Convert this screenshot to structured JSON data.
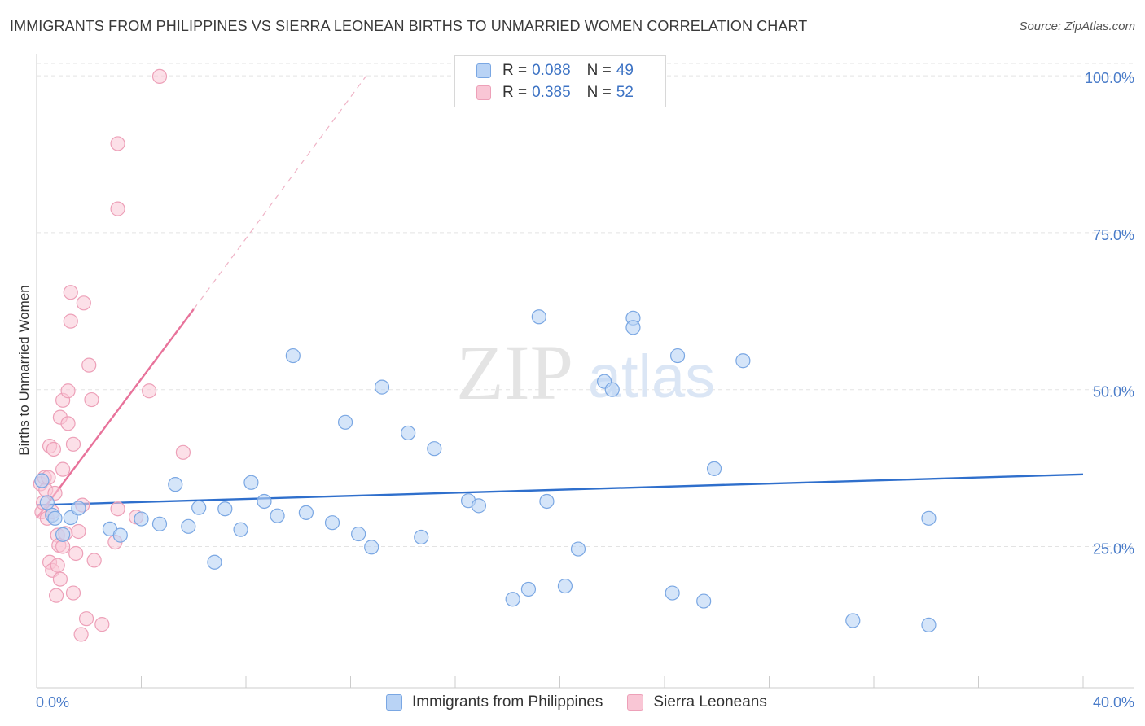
{
  "title": "IMMIGRANTS FROM PHILIPPINES VS SIERRA LEONEAN BIRTHS TO UNMARRIED WOMEN CORRELATION CHART",
  "source": "Source: ZipAtlas.com",
  "watermark": {
    "zip": "ZIP",
    "atlas": "atlas"
  },
  "legend": {
    "rows": [
      {
        "r_label": "R =",
        "r_value": "0.088",
        "n_label": "N =",
        "n_value": "49"
      },
      {
        "r_label": "R =",
        "r_value": "0.385",
        "n_label": "N =",
        "n_value": "52"
      }
    ]
  },
  "colors": {
    "philippines_fill": "#b9d3f5",
    "philippines_stroke": "#7aa7e3",
    "philippines_line": "#2f6fcc",
    "sierra_fill": "#f9c6d5",
    "sierra_stroke": "#eda0b8",
    "sierra_line": "#e8739b",
    "tick_text": "#4a7cc9",
    "grid": "#e3e3e3"
  },
  "chart_data": {
    "type": "scatter",
    "title": "IMMIGRANTS FROM PHILIPPINES VS SIERRA LEONEAN BIRTHS TO UNMARRIED WOMEN CORRELATION CHART",
    "xlabel": "",
    "ylabel": "Births to Unmarried Women",
    "xlim": [
      0,
      40
    ],
    "ylim": [
      2.5,
      103
    ],
    "x_tick_labels": [
      "0.0%",
      "40.0%"
    ],
    "y_ticks": [
      25,
      50,
      75,
      100
    ],
    "y_tick_labels": [
      "25.0%",
      "50.0%",
      "75.0%",
      "100.0%"
    ],
    "legend": [
      "Immigrants from Philippines",
      "Sierra Leoneans"
    ],
    "series": [
      {
        "name": "Immigrants from Philippines",
        "R": 0.088,
        "N": 49,
        "trend": {
          "x": [
            0,
            40
          ],
          "y": [
            31.6,
            36.5
          ]
        },
        "points": [
          [
            0.2,
            35.5
          ],
          [
            0.4,
            32.0
          ],
          [
            0.6,
            30.0
          ],
          [
            0.7,
            29.5
          ],
          [
            1.0,
            26.9
          ],
          [
            1.3,
            29.6
          ],
          [
            1.6,
            31.1
          ],
          [
            2.8,
            27.8
          ],
          [
            3.2,
            26.8
          ],
          [
            4.0,
            29.4
          ],
          [
            4.7,
            28.6
          ],
          [
            5.3,
            34.9
          ],
          [
            5.8,
            28.2
          ],
          [
            6.2,
            31.2
          ],
          [
            6.8,
            22.5
          ],
          [
            7.2,
            31.0
          ],
          [
            7.8,
            27.7
          ],
          [
            8.2,
            35.2
          ],
          [
            8.7,
            32.2
          ],
          [
            9.2,
            29.9
          ],
          [
            9.8,
            55.4
          ],
          [
            10.3,
            30.4
          ],
          [
            11.3,
            28.8
          ],
          [
            11.8,
            44.8
          ],
          [
            12.3,
            27.0
          ],
          [
            12.8,
            24.9
          ],
          [
            13.2,
            50.4
          ],
          [
            14.2,
            43.1
          ],
          [
            14.7,
            26.5
          ],
          [
            15.2,
            40.6
          ],
          [
            16.5,
            32.3
          ],
          [
            16.9,
            31.5
          ],
          [
            18.2,
            16.6
          ],
          [
            18.8,
            18.2
          ],
          [
            19.2,
            61.6
          ],
          [
            19.5,
            32.2
          ],
          [
            20.2,
            18.7
          ],
          [
            20.7,
            24.6
          ],
          [
            21.7,
            51.3
          ],
          [
            22.0,
            50.0
          ],
          [
            22.8,
            61.4
          ],
          [
            22.8,
            59.9
          ],
          [
            24.3,
            17.6
          ],
          [
            24.5,
            55.4
          ],
          [
            25.5,
            16.3
          ],
          [
            25.9,
            37.4
          ],
          [
            27.0,
            54.6
          ],
          [
            31.2,
            13.2
          ],
          [
            34.1,
            29.5
          ],
          [
            34.1,
            12.5
          ]
        ]
      },
      {
        "name": "Sierra Leoneans",
        "R": 0.385,
        "N": 52,
        "trend": {
          "x": [
            0,
            6
          ],
          "y": [
            29.5,
            62.8
          ]
        },
        "trend_extension": {
          "x": [
            6,
            12.6
          ],
          "y": [
            62.8,
            100
          ]
        },
        "points": [
          [
            0.15,
            35.0
          ],
          [
            0.2,
            30.5
          ],
          [
            0.25,
            32.0
          ],
          [
            0.3,
            36.0
          ],
          [
            0.35,
            34.0
          ],
          [
            0.4,
            29.5
          ],
          [
            0.45,
            36.0
          ],
          [
            0.5,
            22.5
          ],
          [
            0.5,
            41.0
          ],
          [
            0.6,
            21.2
          ],
          [
            0.6,
            30.5
          ],
          [
            0.65,
            40.5
          ],
          [
            0.7,
            33.5
          ],
          [
            0.75,
            17.2
          ],
          [
            0.8,
            22.0
          ],
          [
            0.8,
            26.8
          ],
          [
            0.85,
            25.2
          ],
          [
            0.9,
            19.8
          ],
          [
            0.9,
            45.6
          ],
          [
            1.0,
            25.0
          ],
          [
            1.0,
            48.3
          ],
          [
            1.0,
            37.3
          ],
          [
            1.1,
            27.1
          ],
          [
            1.2,
            49.8
          ],
          [
            1.2,
            44.6
          ],
          [
            1.3,
            60.9
          ],
          [
            1.3,
            65.5
          ],
          [
            1.4,
            17.6
          ],
          [
            1.4,
            41.3
          ],
          [
            1.5,
            23.9
          ],
          [
            1.6,
            27.4
          ],
          [
            1.7,
            11.0
          ],
          [
            1.75,
            31.6
          ],
          [
            1.8,
            63.8
          ],
          [
            1.9,
            13.5
          ],
          [
            2.0,
            53.9
          ],
          [
            2.1,
            48.4
          ],
          [
            2.2,
            22.8
          ],
          [
            2.5,
            12.6
          ],
          [
            3.0,
            25.7
          ],
          [
            3.1,
            78.8
          ],
          [
            3.1,
            31.0
          ],
          [
            3.1,
            89.2
          ],
          [
            3.8,
            29.7
          ],
          [
            4.3,
            49.8
          ],
          [
            4.7,
            99.9
          ],
          [
            5.6,
            40.0
          ]
        ]
      }
    ]
  }
}
